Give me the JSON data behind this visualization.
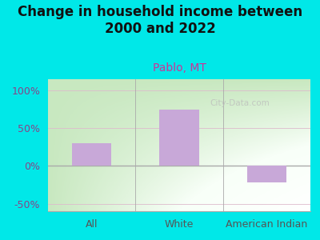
{
  "title": "Change in household income between\n2000 and 2022",
  "subtitle": "Pablo, MT",
  "categories": [
    "All",
    "White",
    "American Indian"
  ],
  "values": [
    30,
    75,
    -22
  ],
  "bar_color": "#c8a8d8",
  "background_color": "#00e8e8",
  "title_fontsize": 12,
  "subtitle_fontsize": 10,
  "subtitle_color": "#cc3399",
  "ytick_label_color": "#884488",
  "xtick_label_color": "#555555",
  "ylim": [
    -60,
    115
  ],
  "yticks": [
    -50,
    0,
    50,
    100
  ],
  "ytick_labels": [
    "-50%",
    "0%",
    "50%",
    "100%"
  ],
  "watermark": "City-Data.com",
  "title_color": "#111111",
  "grid_color": "#ddbbcc",
  "bar_width": 0.45
}
